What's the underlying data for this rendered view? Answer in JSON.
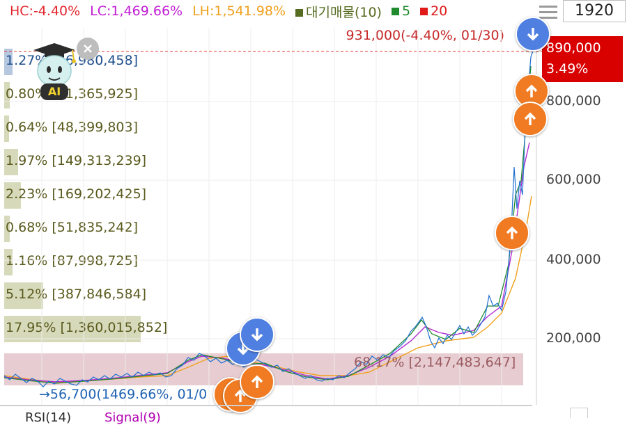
{
  "legend": {
    "hc": "HC:-4.40%",
    "lc": "LC:1,469.66%",
    "lh": "LH:1,541.98%",
    "volume_profile": "대기매물(10)",
    "ma5": "5",
    "ma20": "20"
  },
  "colors": {
    "hc": "#e3262d",
    "lc": "#c21bd6",
    "lh": "#f0a01c",
    "volume_profile": "#556b1f",
    "ma5": "#1f8a2e",
    "ma20": "#e01919",
    "up_button": "#f07b22",
    "down_button": "#4f7fe0",
    "price_badge": "#d90000"
  },
  "period": "1920",
  "last_info": "931,000(-4.40%, 01/30)",
  "price_badge": {
    "price": "890,000",
    "change": "3.49%"
  },
  "y_axis_ticks": [
    "800,000",
    "600,000",
    "400,000",
    "200,000"
  ],
  "volume_profile_rows": [
    {
      "label": "1.27% [96,980,458]",
      "pct": 1.27
    },
    {
      "label": "0.80% [61,365,925]",
      "pct": 0.8
    },
    {
      "label": "0.64% [48,399,803]",
      "pct": 0.64
    },
    {
      "label": "1.97% [149,313,239]",
      "pct": 1.97
    },
    {
      "label": "2.23% [169,202,425]",
      "pct": 2.23
    },
    {
      "label": "0.68% [51,835,242]",
      "pct": 0.68
    },
    {
      "label": "1.16% [87,998,725]",
      "pct": 1.16
    },
    {
      "label": "5.12% [387,846,584]",
      "pct": 5.12
    },
    {
      "label": "17.95% [1,360,015,852]",
      "pct": 17.95
    }
  ],
  "max_volume_band": "68.17% [2,147,483,647]",
  "low_price_label": "56,700(1469.66%, 01/0",
  "ai_badge": "AI",
  "bottom_indicators": {
    "rsi": "RSI(14)",
    "signal": "Signal(9)"
  }
}
